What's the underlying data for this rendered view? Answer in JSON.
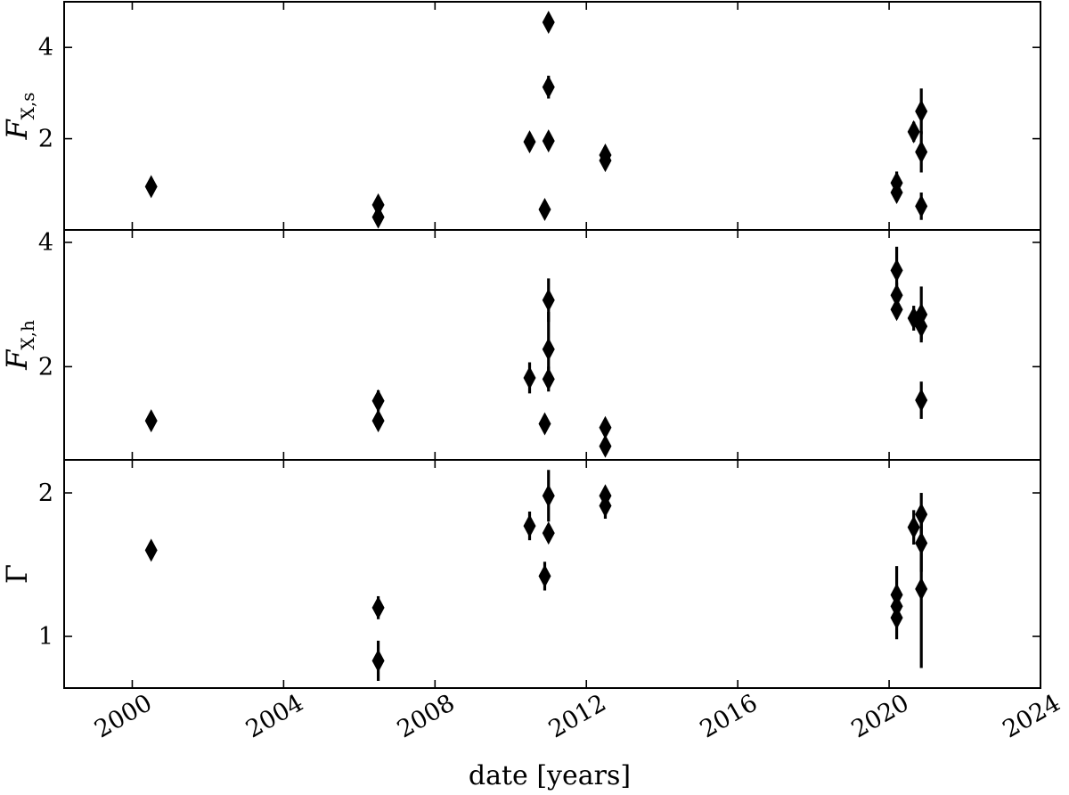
{
  "chart_data": {
    "type": "scatter",
    "xlabel": "date [years]",
    "xlim": [
      1998.2,
      2024.0
    ],
    "xticks": [
      2000,
      2004,
      2008,
      2012,
      2016,
      2020,
      2024
    ],
    "xtick_labels": [
      "2000",
      "2004",
      "2008",
      "2012",
      "2016",
      "2020",
      "2024"
    ],
    "panels": [
      {
        "id": "soft",
        "ylabel_main": "F",
        "ylabel_sub": "X,s",
        "ylim": [
          0.0,
          5.0
        ],
        "yticks": [
          2,
          4
        ],
        "ytick_labels": [
          "2",
          "4"
        ],
        "points": [
          {
            "x": 2000.5,
            "y": 0.95,
            "err": 0.05
          },
          {
            "x": 2006.5,
            "y": 0.55,
            "err": 0.05
          },
          {
            "x": 2006.5,
            "y": 0.28,
            "err": 0.05
          },
          {
            "x": 2010.5,
            "y": 1.93,
            "err": 0.05
          },
          {
            "x": 2010.9,
            "y": 0.45,
            "err": 0.05
          },
          {
            "x": 2011.0,
            "y": 1.95,
            "err": 0.08
          },
          {
            "x": 2011.0,
            "y": 3.13,
            "err": 0.25
          },
          {
            "x": 2011.0,
            "y": 4.55,
            "err": 0.08
          },
          {
            "x": 2012.5,
            "y": 1.64,
            "err": 0.06
          },
          {
            "x": 2012.5,
            "y": 1.52,
            "err": 0.06
          },
          {
            "x": 2020.2,
            "y": 1.03,
            "err": 0.25
          },
          {
            "x": 2020.2,
            "y": 0.82,
            "err": 0.1
          },
          {
            "x": 2020.65,
            "y": 2.15,
            "err": 0.22
          },
          {
            "x": 2020.85,
            "y": 2.6,
            "err": 0.5
          },
          {
            "x": 2020.85,
            "y": 1.71,
            "err": 0.45
          },
          {
            "x": 2020.85,
            "y": 0.52,
            "err": 0.3
          }
        ]
      },
      {
        "id": "hard",
        "ylabel_main": "F",
        "ylabel_sub": "X,h",
        "ylim": [
          0.5,
          4.2
        ],
        "yticks": [
          2,
          4
        ],
        "ytick_labels": [
          "2",
          "4"
        ],
        "points": [
          {
            "x": 2000.5,
            "y": 1.13,
            "err": 0.05
          },
          {
            "x": 2006.5,
            "y": 1.45,
            "err": 0.17
          },
          {
            "x": 2006.5,
            "y": 1.13,
            "err": 0.05
          },
          {
            "x": 2010.5,
            "y": 1.82,
            "err": 0.25
          },
          {
            "x": 2010.9,
            "y": 1.08,
            "err": 0.05
          },
          {
            "x": 2011.0,
            "y": 3.07,
            "err": 0.35
          },
          {
            "x": 2011.0,
            "y": 2.28,
            "err": 0.6
          },
          {
            "x": 2011.0,
            "y": 1.8,
            "err": 0.2
          },
          {
            "x": 2012.5,
            "y": 1.02,
            "err": 0.05
          },
          {
            "x": 2012.5,
            "y": 0.72,
            "err": 0.05
          },
          {
            "x": 2020.2,
            "y": 3.55,
            "err": 0.38
          },
          {
            "x": 2020.2,
            "y": 3.15,
            "err": 0.2
          },
          {
            "x": 2020.2,
            "y": 2.92,
            "err": 0.15
          },
          {
            "x": 2020.65,
            "y": 2.78,
            "err": 0.2
          },
          {
            "x": 2020.85,
            "y": 2.84,
            "err": 0.45
          },
          {
            "x": 2020.85,
            "y": 2.65,
            "err": 0.22
          },
          {
            "x": 2020.85,
            "y": 1.46,
            "err": 0.3
          }
        ]
      },
      {
        "id": "gamma",
        "ylabel_main": "Γ",
        "ylabel_sub": "",
        "ylim": [
          0.64,
          2.23
        ],
        "yticks": [
          1,
          2
        ],
        "ytick_labels": [
          "1",
          "2"
        ],
        "points": [
          {
            "x": 2000.5,
            "y": 1.6,
            "err": 0.04
          },
          {
            "x": 2006.5,
            "y": 1.2,
            "err": 0.08
          },
          {
            "x": 2006.5,
            "y": 0.83,
            "err": 0.14
          },
          {
            "x": 2010.5,
            "y": 1.77,
            "err": 0.1
          },
          {
            "x": 2010.9,
            "y": 1.42,
            "err": 0.1
          },
          {
            "x": 2011.0,
            "y": 1.98,
            "err": 0.18
          },
          {
            "x": 2011.0,
            "y": 1.72,
            "err": 0.05
          },
          {
            "x": 2012.5,
            "y": 1.98,
            "err": 0.05
          },
          {
            "x": 2012.5,
            "y": 1.91,
            "err": 0.09
          },
          {
            "x": 2020.2,
            "y": 1.29,
            "err": 0.2
          },
          {
            "x": 2020.2,
            "y": 1.21,
            "err": 0.1
          },
          {
            "x": 2020.2,
            "y": 1.13,
            "err": 0.15
          },
          {
            "x": 2020.65,
            "y": 1.76,
            "err": 0.12
          },
          {
            "x": 2020.85,
            "y": 1.85,
            "err": 0.15
          },
          {
            "x": 2020.85,
            "y": 1.65,
            "err": 0.2
          },
          {
            "x": 2020.85,
            "y": 1.33,
            "err": 0.55
          }
        ]
      }
    ]
  }
}
